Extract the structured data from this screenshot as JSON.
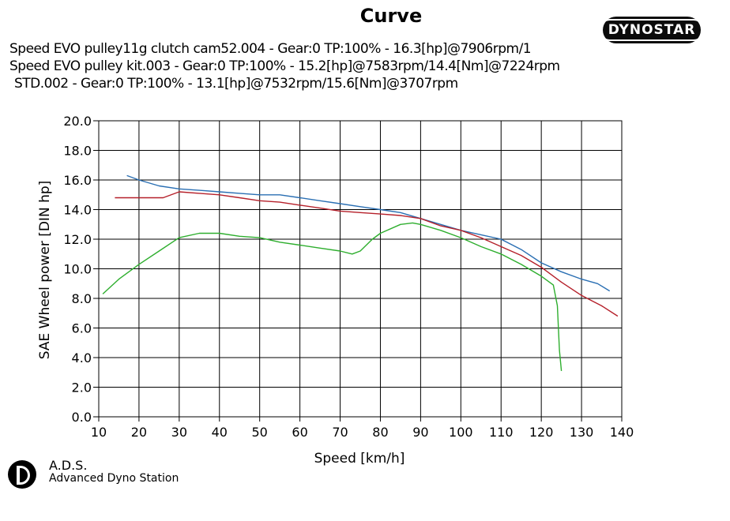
{
  "chart_data": {
    "type": "line",
    "title": "Curve",
    "xlabel": "Speed [km/h]",
    "ylabel": "SAE Wheel power [DIN hp]",
    "xlim": [
      10,
      140
    ],
    "ylim": [
      0,
      20
    ],
    "x_ticks": [
      10,
      20,
      30,
      40,
      50,
      60,
      70,
      80,
      90,
      100,
      110,
      120,
      130,
      140
    ],
    "y_ticks": [
      "0.0",
      "2.0",
      "4.0",
      "6.0",
      "8.0",
      "10.0",
      "12.0",
      "14.0",
      "16.0",
      "18.0",
      "20.0"
    ],
    "grid": true,
    "series": [
      {
        "name": "Speed EVO pulley11g clutch cam52.004 - Gear:0 TP:100% - 16.3[hp]@7906rpm/1",
        "color": "#2a6fb3",
        "x": [
          17,
          20,
          25,
          30,
          35,
          40,
          45,
          50,
          55,
          60,
          65,
          70,
          75,
          80,
          85,
          90,
          95,
          100,
          105,
          110,
          115,
          120,
          125,
          130,
          134,
          137
        ],
        "y": [
          16.3,
          16.0,
          15.6,
          15.4,
          15.3,
          15.2,
          15.1,
          15.0,
          15.0,
          14.8,
          14.6,
          14.4,
          14.2,
          14.0,
          13.8,
          13.4,
          13.0,
          12.6,
          12.3,
          12.0,
          11.3,
          10.4,
          9.8,
          9.3,
          9.0,
          8.5
        ]
      },
      {
        "name": "Speed EVO pulley kit.003 - Gear:0 TP:100% - 15.2[hp]@7583rpm/14.4[Nm]@7224rpm",
        "color": "#b5202a",
        "x": [
          14,
          20,
          26,
          30,
          35,
          40,
          45,
          50,
          55,
          60,
          65,
          70,
          75,
          80,
          85,
          90,
          95,
          100,
          105,
          110,
          115,
          120,
          125,
          130,
          135,
          139
        ],
        "y": [
          14.8,
          14.8,
          14.8,
          15.2,
          15.1,
          15.0,
          14.8,
          14.6,
          14.5,
          14.3,
          14.1,
          13.9,
          13.8,
          13.7,
          13.6,
          13.4,
          12.9,
          12.6,
          12.1,
          11.5,
          10.9,
          10.1,
          9.1,
          8.2,
          7.5,
          6.8
        ]
      },
      {
        "name": "STD.002 - Gear:0 TP:100% - 13.1[hp]@7532rpm/15.6[Nm]@3707rpm",
        "color": "#2eae2e",
        "x": [
          11,
          15,
          20,
          25,
          30,
          35,
          40,
          45,
          50,
          55,
          60,
          65,
          70,
          73,
          75,
          78,
          80,
          85,
          88,
          90,
          95,
          100,
          105,
          110,
          115,
          120,
          123,
          124,
          124.5,
          125
        ],
        "y": [
          8.3,
          9.3,
          10.3,
          11.2,
          12.1,
          12.4,
          12.4,
          12.2,
          12.1,
          11.8,
          11.6,
          11.4,
          11.2,
          11.0,
          11.2,
          12.0,
          12.4,
          13.0,
          13.1,
          13.0,
          12.6,
          12.1,
          11.5,
          11.0,
          10.3,
          9.5,
          8.9,
          7.5,
          4.5,
          3.1
        ]
      }
    ]
  },
  "branding": {
    "logo_text": "DYNOSTAR",
    "footer_title": "A.D.S.",
    "footer_subtitle": "Advanced Dyno Station"
  }
}
